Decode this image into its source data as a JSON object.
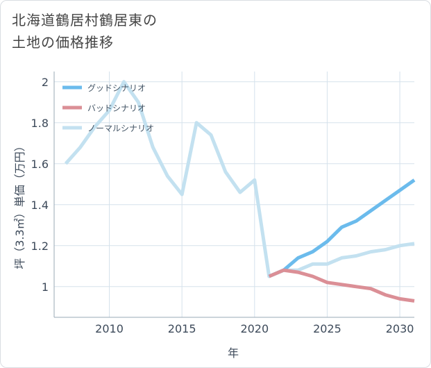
{
  "title": {
    "line1": "北海道鶴居村鶴居東の",
    "line2": "土地の価格推移"
  },
  "chart_data": {
    "type": "line",
    "xlabel": "年",
    "ylabel": "坪（3.3㎡）単価（万円）",
    "xlim": [
      2006.2,
      2031
    ],
    "ylim": [
      0.85,
      2.05
    ],
    "xticks": [
      2010,
      2015,
      2020,
      2025,
      2030
    ],
    "yticks": [
      1,
      1.2,
      1.4,
      1.6,
      1.8,
      2
    ],
    "ytick_labels": [
      "1",
      "1.2",
      "1.4",
      "1.6",
      "1.8",
      "2"
    ],
    "grid": true,
    "legend_position": "top-left",
    "series": [
      {
        "name": "ノーマルシナリオ",
        "color": "#c3e1f0",
        "x": [
          2007,
          2008,
          2009,
          2010,
          2011,
          2012,
          2013,
          2014,
          2015,
          2016,
          2017,
          2018,
          2019,
          2020,
          2021,
          2022,
          2023,
          2024,
          2025,
          2026,
          2027,
          2028,
          2029,
          2030,
          2031
        ],
        "values": [
          1.6,
          1.68,
          1.78,
          1.86,
          2.0,
          1.9,
          1.68,
          1.54,
          1.45,
          1.8,
          1.74,
          1.56,
          1.46,
          1.52,
          1.05,
          1.08,
          1.08,
          1.11,
          1.11,
          1.14,
          1.15,
          1.17,
          1.18,
          1.2,
          1.21
        ]
      },
      {
        "name": "グッドシナリオ",
        "color": "#6bbbec",
        "x": [
          2021,
          2022,
          2023,
          2024,
          2025,
          2026,
          2027,
          2028,
          2029,
          2030,
          2031
        ],
        "values": [
          1.05,
          1.08,
          1.14,
          1.17,
          1.22,
          1.29,
          1.32,
          1.37,
          1.42,
          1.47,
          1.52
        ]
      },
      {
        "name": "バッドシナリオ",
        "color": "#db8f96",
        "x": [
          2021,
          2022,
          2023,
          2024,
          2025,
          2026,
          2027,
          2028,
          2029,
          2030,
          2031
        ],
        "values": [
          1.05,
          1.08,
          1.07,
          1.05,
          1.02,
          1.01,
          1.0,
          0.99,
          0.96,
          0.94,
          0.93
        ]
      }
    ],
    "legend_order": [
      "グッドシナリオ",
      "バッドシナリオ",
      "ノーマルシナリオ"
    ]
  }
}
